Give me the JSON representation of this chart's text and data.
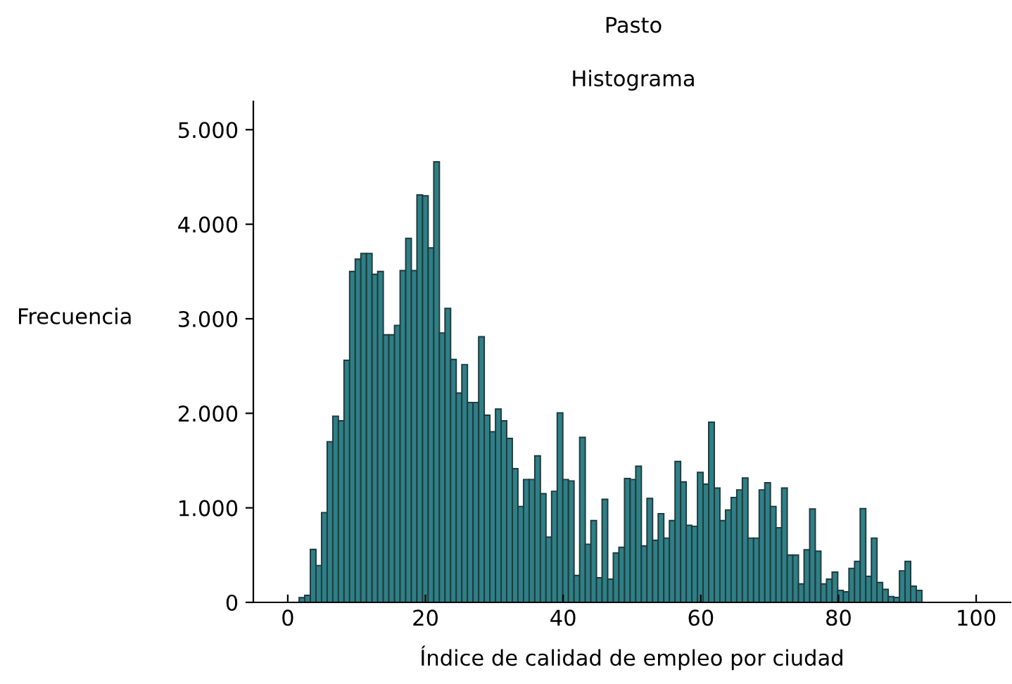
{
  "chart_data": {
    "type": "histogram",
    "title": "Pasto",
    "subtitle": "Histograma",
    "xlabel": "Índice de calidad de empleo por ciudad",
    "ylabel": "Frecuencia",
    "color": "#2f7f86",
    "bins": [
      1.65,
      2.465,
      3.28,
      4.095,
      4.91,
      5.725,
      6.54,
      7.355,
      8.17,
      8.985,
      9.8,
      10.615,
      11.43,
      12.245,
      13.06,
      13.875,
      14.69,
      15.505,
      16.32,
      17.135,
      17.95,
      18.765,
      19.58,
      20.395,
      21.21,
      22.025,
      22.84,
      23.655,
      24.47,
      25.285,
      26.1,
      26.915,
      27.73,
      28.545,
      29.36,
      30.175,
      30.99,
      31.805,
      32.62,
      33.435,
      34.25,
      35.065,
      35.88,
      36.695,
      37.51,
      38.325,
      39.14,
      39.955,
      40.77,
      41.585,
      42.4,
      43.215,
      44.03,
      44.845,
      45.66,
      46.475,
      47.29,
      48.105,
      48.92,
      49.735,
      50.55,
      51.365,
      52.18,
      52.995,
      53.81,
      54.625,
      55.44,
      56.255,
      57.07,
      57.885,
      58.7,
      59.515,
      60.33,
      61.145,
      61.96,
      62.775,
      63.59,
      64.405,
      65.22,
      66.035,
      66.85,
      67.665,
      68.48,
      69.295,
      70.11,
      70.925,
      71.74,
      72.555,
      73.37,
      74.185,
      75,
      75.815,
      76.63,
      77.445,
      78.26,
      79.075,
      79.89,
      80.705,
      81.52,
      82.335,
      83.15,
      83.965,
      84.78,
      85.595,
      86.41,
      87.225,
      88.04,
      88.855,
      89.67,
      90.485,
      91.3,
      92.115
    ],
    "values": [
      50,
      75,
      560,
      390,
      950,
      1700,
      1970,
      1920,
      2560,
      3500,
      3630,
      3690,
      3690,
      3470,
      3500,
      2830,
      2830,
      2930,
      3510,
      3850,
      3510,
      4310,
      4300,
      3750,
      4660,
      2850,
      3110,
      2570,
      2215,
      2515,
      2115,
      2115,
      2810,
      1980,
      1805,
      2045,
      1920,
      1735,
      1415,
      1015,
      1300,
      1300,
      1550,
      1150,
      690,
      1175,
      2005,
      1300,
      1285,
      285,
      1745,
      615,
      865,
      260,
      1090,
      245,
      523,
      582,
      1310,
      1300,
      1440,
      597,
      1100,
      657,
      939,
      680,
      865,
      1490,
      1275,
      815,
      805,
      1375,
      1250,
      1905,
      1210,
      865,
      978,
      1110,
      1190,
      1315,
      680,
      680,
      1190,
      1265,
      1015,
      790,
      1210,
      500,
      500,
      196,
      557,
      988,
      542,
      196,
      245,
      320,
      126,
      111,
      360,
      434,
      993,
      275,
      680,
      211,
      137,
      62,
      52,
      334,
      434,
      171,
      126
    ],
    "xlim": [
      -5,
      105
    ],
    "xticks": [
      0,
      20,
      40,
      60,
      80,
      100
    ],
    "ylim": [
      0,
      5300
    ],
    "yticks": [
      0,
      {
        "value": 1000,
        "label": "1.000"
      },
      {
        "value": 2000,
        "label": "2.000"
      },
      {
        "value": 3000,
        "label": "3.000"
      },
      {
        "value": 4000,
        "label": "4.000"
      },
      {
        "value": 5000,
        "label": "5.000"
      }
    ],
    "grid": false,
    "legend": false
  }
}
